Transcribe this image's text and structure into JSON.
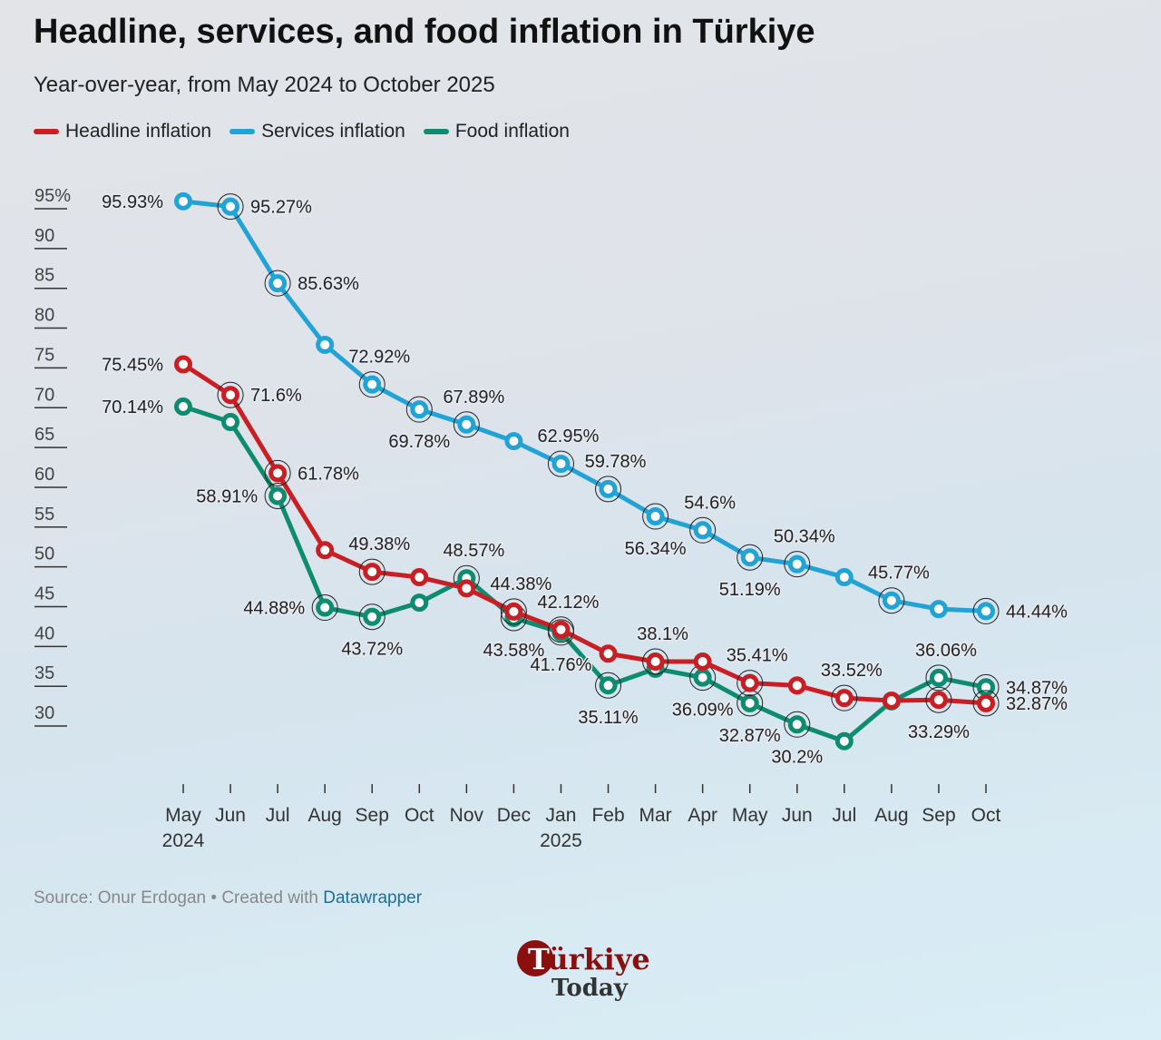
{
  "title": "Headline, services, and food inflation in Türkiye",
  "subtitle": "Year-over-year, from May 2024 to October 2025",
  "source_prefix": "Source: Onur Erdogan • Created with ",
  "source_link": "Datawrapper",
  "logo_text": "Türkiye Today",
  "chart_data": {
    "type": "line",
    "title": "Headline, services, and food inflation in Türkiye",
    "x": [
      "May",
      "Jun",
      "Jul",
      "Aug",
      "Sep",
      "Oct",
      "Nov",
      "Dec",
      "Jan",
      "Feb",
      "Mar",
      "Apr",
      "May",
      "Jun",
      "Jul",
      "Aug",
      "Sep",
      "Oct"
    ],
    "x_year_labels": {
      "0": "2024",
      "8": "2025"
    },
    "yticks": [
      "95%",
      "90",
      "85",
      "80",
      "75",
      "70",
      "65",
      "60",
      "55",
      "50",
      "45",
      "40",
      "35",
      "30"
    ],
    "ylim": [
      30,
      95
    ],
    "grid": false,
    "legend_placement": "top-left",
    "series": [
      {
        "name": "Headline inflation",
        "color": "#c91f24",
        "values": [
          75.45,
          71.6,
          61.78,
          52.1,
          49.38,
          48.7,
          47.3,
          44.38,
          42.12,
          39.1,
          38.1,
          38.1,
          35.41,
          35.1,
          33.52,
          33.2,
          33.29,
          32.87
        ],
        "labels": {
          "0": "75.45%",
          "1": "71.6%",
          "2": "61.78%",
          "4": "49.38%",
          "7": "44.38%",
          "8": "42.12%",
          "10": "38.1%",
          "12": "35.41%",
          "14": "33.52%",
          "16": "33.29%",
          "17": "32.87%"
        }
      },
      {
        "name": "Services inflation",
        "color": "#22a3d6",
        "values": [
          95.93,
          95.27,
          85.63,
          77.9,
          72.92,
          69.78,
          67.89,
          65.8,
          62.95,
          59.78,
          56.34,
          54.6,
          51.19,
          50.34,
          48.7,
          45.77,
          44.7,
          44.44
        ],
        "labels": {
          "0": "95.93%",
          "1": "95.27%",
          "2": "85.63%",
          "4": "72.92%",
          "5": "69.78%",
          "6": "67.89%",
          "8": "62.95%",
          "9": "59.78%",
          "10": "56.34%",
          "11": "54.6%",
          "12": "51.19%",
          "13": "50.34%",
          "15": "45.77%",
          "17": "44.44%"
        }
      },
      {
        "name": "Food inflation",
        "color": "#0e8c6f",
        "values": [
          70.14,
          68.2,
          58.91,
          44.88,
          43.72,
          45.5,
          48.57,
          43.58,
          41.76,
          35.11,
          37.2,
          36.09,
          32.87,
          30.2,
          28.1,
          33.1,
          36.06,
          34.87
        ],
        "labels": {
          "0": "70.14%",
          "2": "58.91%",
          "3": "44.88%",
          "4": "43.72%",
          "6": "48.57%",
          "7": "43.58%",
          "8": "41.76%",
          "9": "35.11%",
          "11": "36.09%",
          "12": "32.87%",
          "13": "30.2%",
          "16": "36.06%",
          "17": "34.87%"
        }
      }
    ]
  }
}
